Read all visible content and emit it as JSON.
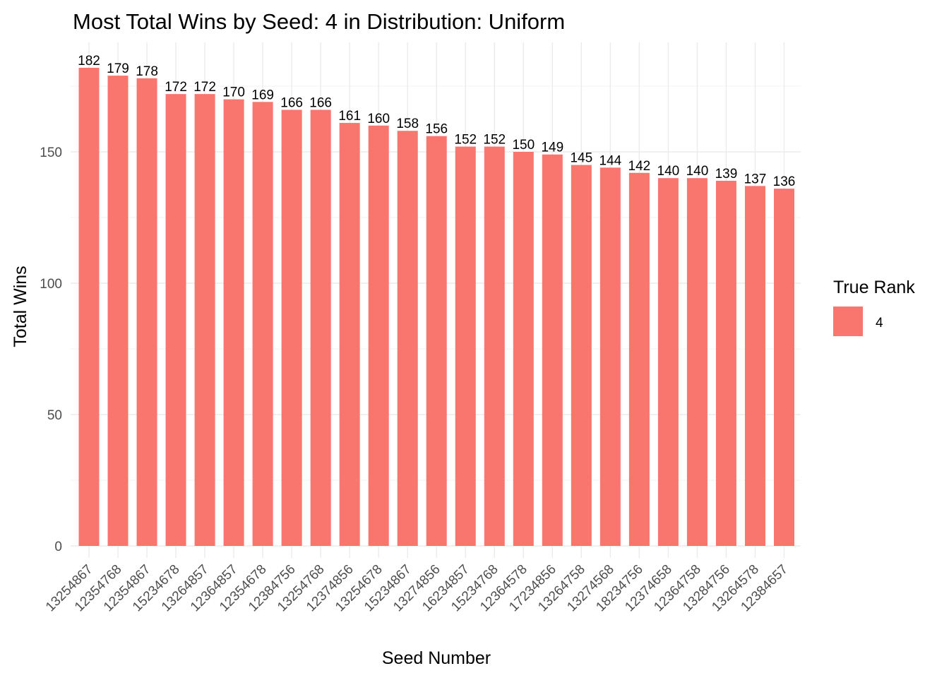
{
  "chart_data": {
    "type": "bar",
    "title": "Most Total Wins by Seed: 4 in Distribution: Uniform",
    "xlabel": "Seed Number",
    "ylabel": "Total Wins",
    "ylim": [
      0,
      186
    ],
    "yticks": [
      0,
      50,
      100,
      150
    ],
    "categories": [
      "13254867",
      "12354768",
      "12354867",
      "15234678",
      "13264857",
      "12364857",
      "12354678",
      "12384756",
      "13254768",
      "12374856",
      "13254678",
      "15234867",
      "13274856",
      "16234857",
      "15234768",
      "12364578",
      "17234856",
      "13264758",
      "13274568",
      "18234756",
      "12374658",
      "12364758",
      "13284756",
      "13264578",
      "12384657"
    ],
    "series": [
      {
        "values": [
          182,
          179,
          178,
          172,
          172,
          170,
          169,
          166,
          166,
          161,
          160,
          158,
          156,
          152,
          152,
          150,
          149,
          145,
          144,
          142,
          140,
          140,
          139,
          137,
          136
        ]
      }
    ],
    "bar_color": "#F8766D",
    "grid": true,
    "legend": {
      "title": "True Rank",
      "placement": "right",
      "entries": [
        {
          "label": "4",
          "color": "#F8766D"
        }
      ]
    }
  }
}
